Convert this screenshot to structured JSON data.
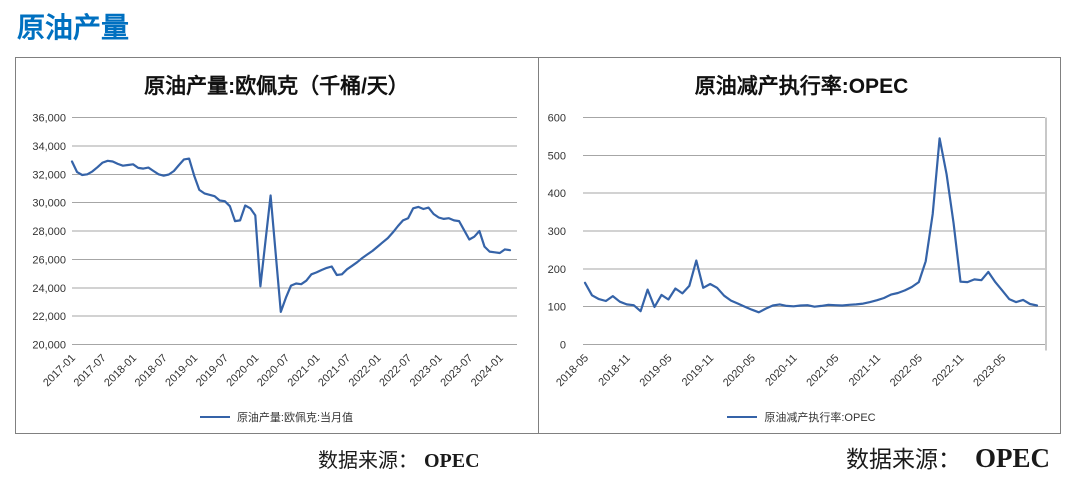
{
  "page_title": "原油产量",
  "colors": {
    "accent": "#0070C0",
    "line": "#3563A8",
    "grid": "#A6A6A6",
    "frame": "#808080",
    "tick_text": "#333333"
  },
  "sources": {
    "left_prefix": "数据来源：",
    "left_brand": "OPEC",
    "right_prefix": "数据来源：",
    "right_brand": "OPEC"
  },
  "chart_data": [
    {
      "type": "line",
      "title": "原油产量:欧佩克（千桶/天）",
      "legend": "原油产量:欧佩克:当月值",
      "legend_position": "bottom",
      "grid": true,
      "start_month": "2017-01",
      "end_month": "2024-03",
      "x_tick_interval_months": 6,
      "x_tick_labels": [
        "2017-01",
        "2017-07",
        "2018-01",
        "2018-07",
        "2019-01",
        "2019-07",
        "2020-01",
        "2020-07",
        "2021-01",
        "2021-07",
        "2022-01",
        "2022-07",
        "2023-01",
        "2023-07",
        "2024-01"
      ],
      "ylim": [
        20000,
        36000
      ],
      "y_tick_labels": [
        "36,000",
        "34,000",
        "32,000",
        "30,000",
        "28,000",
        "26,000",
        "24,000",
        "22,000",
        "20,000"
      ],
      "values": [
        32900,
        32150,
        31950,
        32000,
        32200,
        32500,
        32820,
        32950,
        32900,
        32730,
        32600,
        32650,
        32700,
        32450,
        32400,
        32470,
        32230,
        32000,
        31900,
        31980,
        32230,
        32650,
        33050,
        33100,
        31900,
        30900,
        30650,
        30550,
        30450,
        30150,
        30100,
        29750,
        28700,
        28750,
        29800,
        29600,
        29100,
        24100,
        27300,
        30500,
        26400,
        22300,
        23300,
        24150,
        24300,
        24250,
        24500,
        24950,
        25080,
        25250,
        25400,
        25500,
        24900,
        24950,
        25300,
        25550,
        25800,
        26100,
        26350,
        26600,
        26900,
        27200,
        27500,
        27900,
        28350,
        28750,
        28900,
        29600,
        29700,
        29550,
        29650,
        29200,
        28950,
        28850,
        28900,
        28750,
        28700,
        28050,
        27400,
        27600,
        28000,
        26900,
        26550,
        26500,
        26450,
        26700,
        26650
      ]
    },
    {
      "type": "line",
      "title": "原油减产执行率:OPEC",
      "legend": "原油减产执行率:OPEC",
      "legend_position": "bottom",
      "grid": true,
      "start_month": "2018-05",
      "end_month": "2023-10",
      "x_tick_interval_months": 6,
      "x_tick_labels": [
        "2018-05",
        "2018-11",
        "2019-05",
        "2019-11",
        "2020-05",
        "2020-11",
        "2021-05",
        "2021-11",
        "2022-05",
        "2022-11",
        "2023-05"
      ],
      "ylim": [
        0,
        600
      ],
      "y_tick_labels": [
        "600",
        "500",
        "400",
        "300",
        "200",
        "100",
        "0"
      ],
      "values": [
        163,
        130,
        120,
        115,
        128,
        113,
        106,
        104,
        88,
        145,
        99,
        131,
        119,
        148,
        135,
        155,
        222,
        150,
        160,
        150,
        129,
        116,
        108,
        100,
        92,
        85,
        95,
        103,
        106,
        102,
        101,
        103,
        104,
        100,
        102,
        105,
        104,
        103,
        105,
        106,
        108,
        112,
        117,
        123,
        132,
        136,
        143,
        152,
        165,
        220,
        345,
        545,
        450,
        320,
        166,
        165,
        172,
        170,
        192,
        165,
        143,
        120,
        112,
        118,
        107,
        103
      ]
    }
  ]
}
